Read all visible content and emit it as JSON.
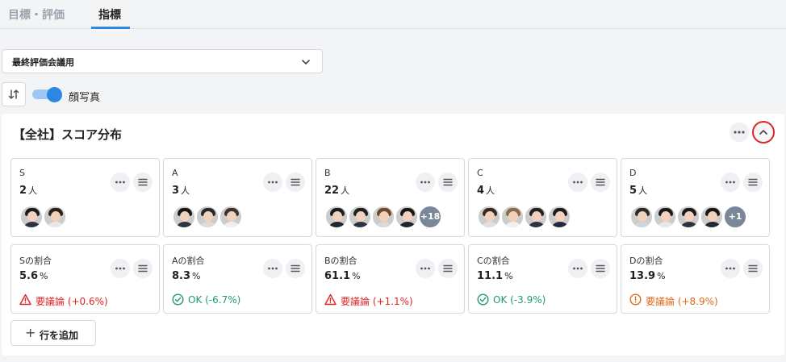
{
  "tabs": [
    {
      "label": "目標・評価"
    },
    {
      "label": "指標"
    }
  ],
  "select": {
    "value": "最終評価会議用"
  },
  "toggle": {
    "label": "顔写真",
    "on": true
  },
  "panel": {
    "title": "【全社】スコア分布"
  },
  "grade_cards": [
    {
      "label": "S",
      "count": "2",
      "unit": "人",
      "extra": ""
    },
    {
      "label": "A",
      "count": "3",
      "unit": "人",
      "extra": ""
    },
    {
      "label": "B",
      "count": "22",
      "unit": "人",
      "extra": "+18"
    },
    {
      "label": "C",
      "count": "4",
      "unit": "人",
      "extra": ""
    },
    {
      "label": "D",
      "count": "5",
      "unit": "人",
      "extra": "+1"
    }
  ],
  "ratio_cards": [
    {
      "label": "Sの割合",
      "value": "5.6",
      "unit": "%",
      "status": "要議論 (+0.6%)",
      "type": "warning"
    },
    {
      "label": "Aの割合",
      "value": "8.3",
      "unit": "%",
      "status": "OK (-6.7%)",
      "type": "ok"
    },
    {
      "label": "Bの割合",
      "value": "61.1",
      "unit": "%",
      "status": "要議論 (+1.1%)",
      "type": "warning"
    },
    {
      "label": "Cの割合",
      "value": "11.1",
      "unit": "%",
      "status": "OK (-3.9%)",
      "type": "ok"
    },
    {
      "label": "Dの割合",
      "value": "13.9",
      "unit": "%",
      "status": "要議論 (+8.9%)",
      "type": "alert"
    }
  ],
  "add_row": {
    "label": "行を追加"
  },
  "colors": {
    "accent": "#2b87e3",
    "warning": "#e02424",
    "ok": "#1f9d6b",
    "alert": "#e06a1a"
  }
}
